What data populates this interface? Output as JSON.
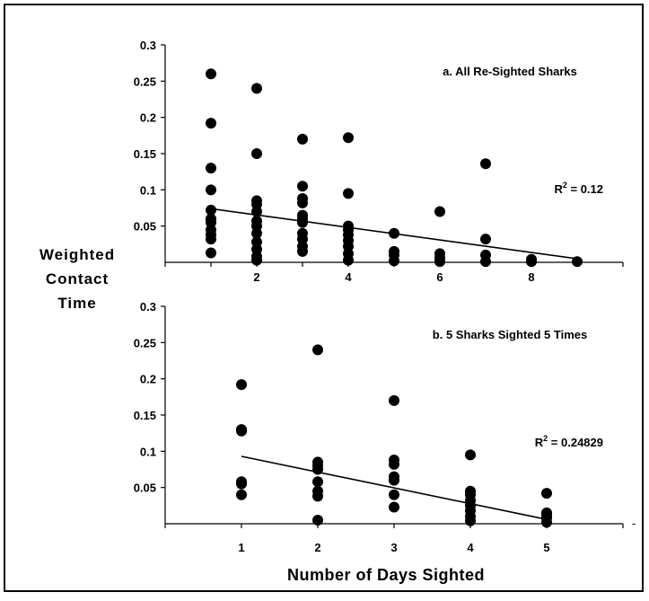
{
  "chart_data": [
    {
      "type": "scatter",
      "title": "a. All Re-Sighted Sharks",
      "annotation": "R² = 0.12",
      "annotation_main": "R",
      "annotation_sup": "2",
      "annotation_rest": " = 0.12",
      "xlim": [
        0,
        10
      ],
      "ylim": [
        0,
        0.3
      ],
      "x_ticks": [
        "2",
        "4",
        "6",
        "8"
      ],
      "x_tick_values": [
        2,
        4,
        6,
        8
      ],
      "y_ticks": [
        "0.05",
        "0.1",
        "0.15",
        "0.2",
        "0.25",
        "0.3"
      ],
      "y_tick_values": [
        0.05,
        0.1,
        0.15,
        0.2,
        0.25,
        0.3
      ],
      "points": [
        [
          1,
          0.26
        ],
        [
          1,
          0.192
        ],
        [
          1,
          0.13
        ],
        [
          1,
          0.1
        ],
        [
          1,
          0.072
        ],
        [
          1,
          0.06
        ],
        [
          1,
          0.055
        ],
        [
          1,
          0.045
        ],
        [
          1,
          0.038
        ],
        [
          1,
          0.032
        ],
        [
          1,
          0.013
        ],
        [
          2,
          0.24
        ],
        [
          2,
          0.15
        ],
        [
          2,
          0.085
        ],
        [
          2,
          0.08
        ],
        [
          2,
          0.07
        ],
        [
          2,
          0.057
        ],
        [
          2,
          0.05
        ],
        [
          2,
          0.04
        ],
        [
          2,
          0.028
        ],
        [
          2,
          0.018
        ],
        [
          2,
          0.008
        ],
        [
          2,
          0.003
        ],
        [
          3,
          0.17
        ],
        [
          3,
          0.105
        ],
        [
          3,
          0.088
        ],
        [
          3,
          0.082
        ],
        [
          3,
          0.065
        ],
        [
          3,
          0.06
        ],
        [
          3,
          0.055
        ],
        [
          3,
          0.04
        ],
        [
          3,
          0.032
        ],
        [
          3,
          0.022
        ],
        [
          3,
          0.015
        ],
        [
          4,
          0.172
        ],
        [
          4,
          0.095
        ],
        [
          4,
          0.05
        ],
        [
          4,
          0.045
        ],
        [
          4,
          0.038
        ],
        [
          4,
          0.03
        ],
        [
          4,
          0.022
        ],
        [
          4,
          0.012
        ],
        [
          4,
          0.003
        ],
        [
          5,
          0.04
        ],
        [
          5,
          0.015
        ],
        [
          5,
          0.01
        ],
        [
          5,
          0.002
        ],
        [
          6,
          0.07
        ],
        [
          6,
          0.012
        ],
        [
          6,
          0.006
        ],
        [
          6,
          0.001
        ],
        [
          7,
          0.136
        ],
        [
          7,
          0.032
        ],
        [
          7,
          0.01
        ],
        [
          7,
          0.001
        ],
        [
          8,
          0.004
        ],
        [
          8,
          0.001
        ],
        [
          9,
          0.001
        ]
      ],
      "trendline": [
        [
          1,
          0.074
        ],
        [
          9,
          0.005
        ]
      ]
    },
    {
      "type": "scatter",
      "title": "b. 5 Sharks Sighted 5 Times",
      "annotation": "R² = 0.24829",
      "annotation_main": "R",
      "annotation_sup": "2",
      "annotation_rest": " = 0.24829",
      "xlim": [
        0,
        6
      ],
      "ylim": [
        0,
        0.3
      ],
      "x_ticks": [
        "1",
        "2",
        "3",
        "4",
        "5"
      ],
      "x_tick_values": [
        1,
        2,
        3,
        4,
        5
      ],
      "y_ticks": [
        "0.05",
        "0.1",
        "0.15",
        "0.2",
        "0.25",
        "0.3"
      ],
      "y_tick_values": [
        0.05,
        0.1,
        0.15,
        0.2,
        0.25,
        0.3
      ],
      "points": [
        [
          1,
          0.192
        ],
        [
          1,
          0.13
        ],
        [
          1,
          0.128
        ],
        [
          1,
          0.058
        ],
        [
          1,
          0.055
        ],
        [
          1,
          0.04
        ],
        [
          2,
          0.24
        ],
        [
          2,
          0.085
        ],
        [
          2,
          0.08
        ],
        [
          2,
          0.075
        ],
        [
          2,
          0.058
        ],
        [
          2,
          0.045
        ],
        [
          2,
          0.038
        ],
        [
          2,
          0.005
        ],
        [
          3,
          0.17
        ],
        [
          3,
          0.088
        ],
        [
          3,
          0.082
        ],
        [
          3,
          0.065
        ],
        [
          3,
          0.06
        ],
        [
          3,
          0.04
        ],
        [
          3,
          0.023
        ],
        [
          4,
          0.095
        ],
        [
          4,
          0.045
        ],
        [
          4,
          0.04
        ],
        [
          4,
          0.032
        ],
        [
          4,
          0.025
        ],
        [
          4,
          0.018
        ],
        [
          4,
          0.01
        ],
        [
          4,
          0.004
        ],
        [
          5,
          0.042
        ],
        [
          5,
          0.015
        ],
        [
          5,
          0.012
        ],
        [
          5,
          0.008
        ],
        [
          5,
          0.002
        ]
      ],
      "trendline": [
        [
          1,
          0.093
        ],
        [
          5,
          0.006
        ]
      ]
    }
  ],
  "y_axis_label_lines": [
    "Weighted",
    "Contact",
    "Time"
  ],
  "x_axis_label": "Number of Days Sighted",
  "edge_mark": "-"
}
